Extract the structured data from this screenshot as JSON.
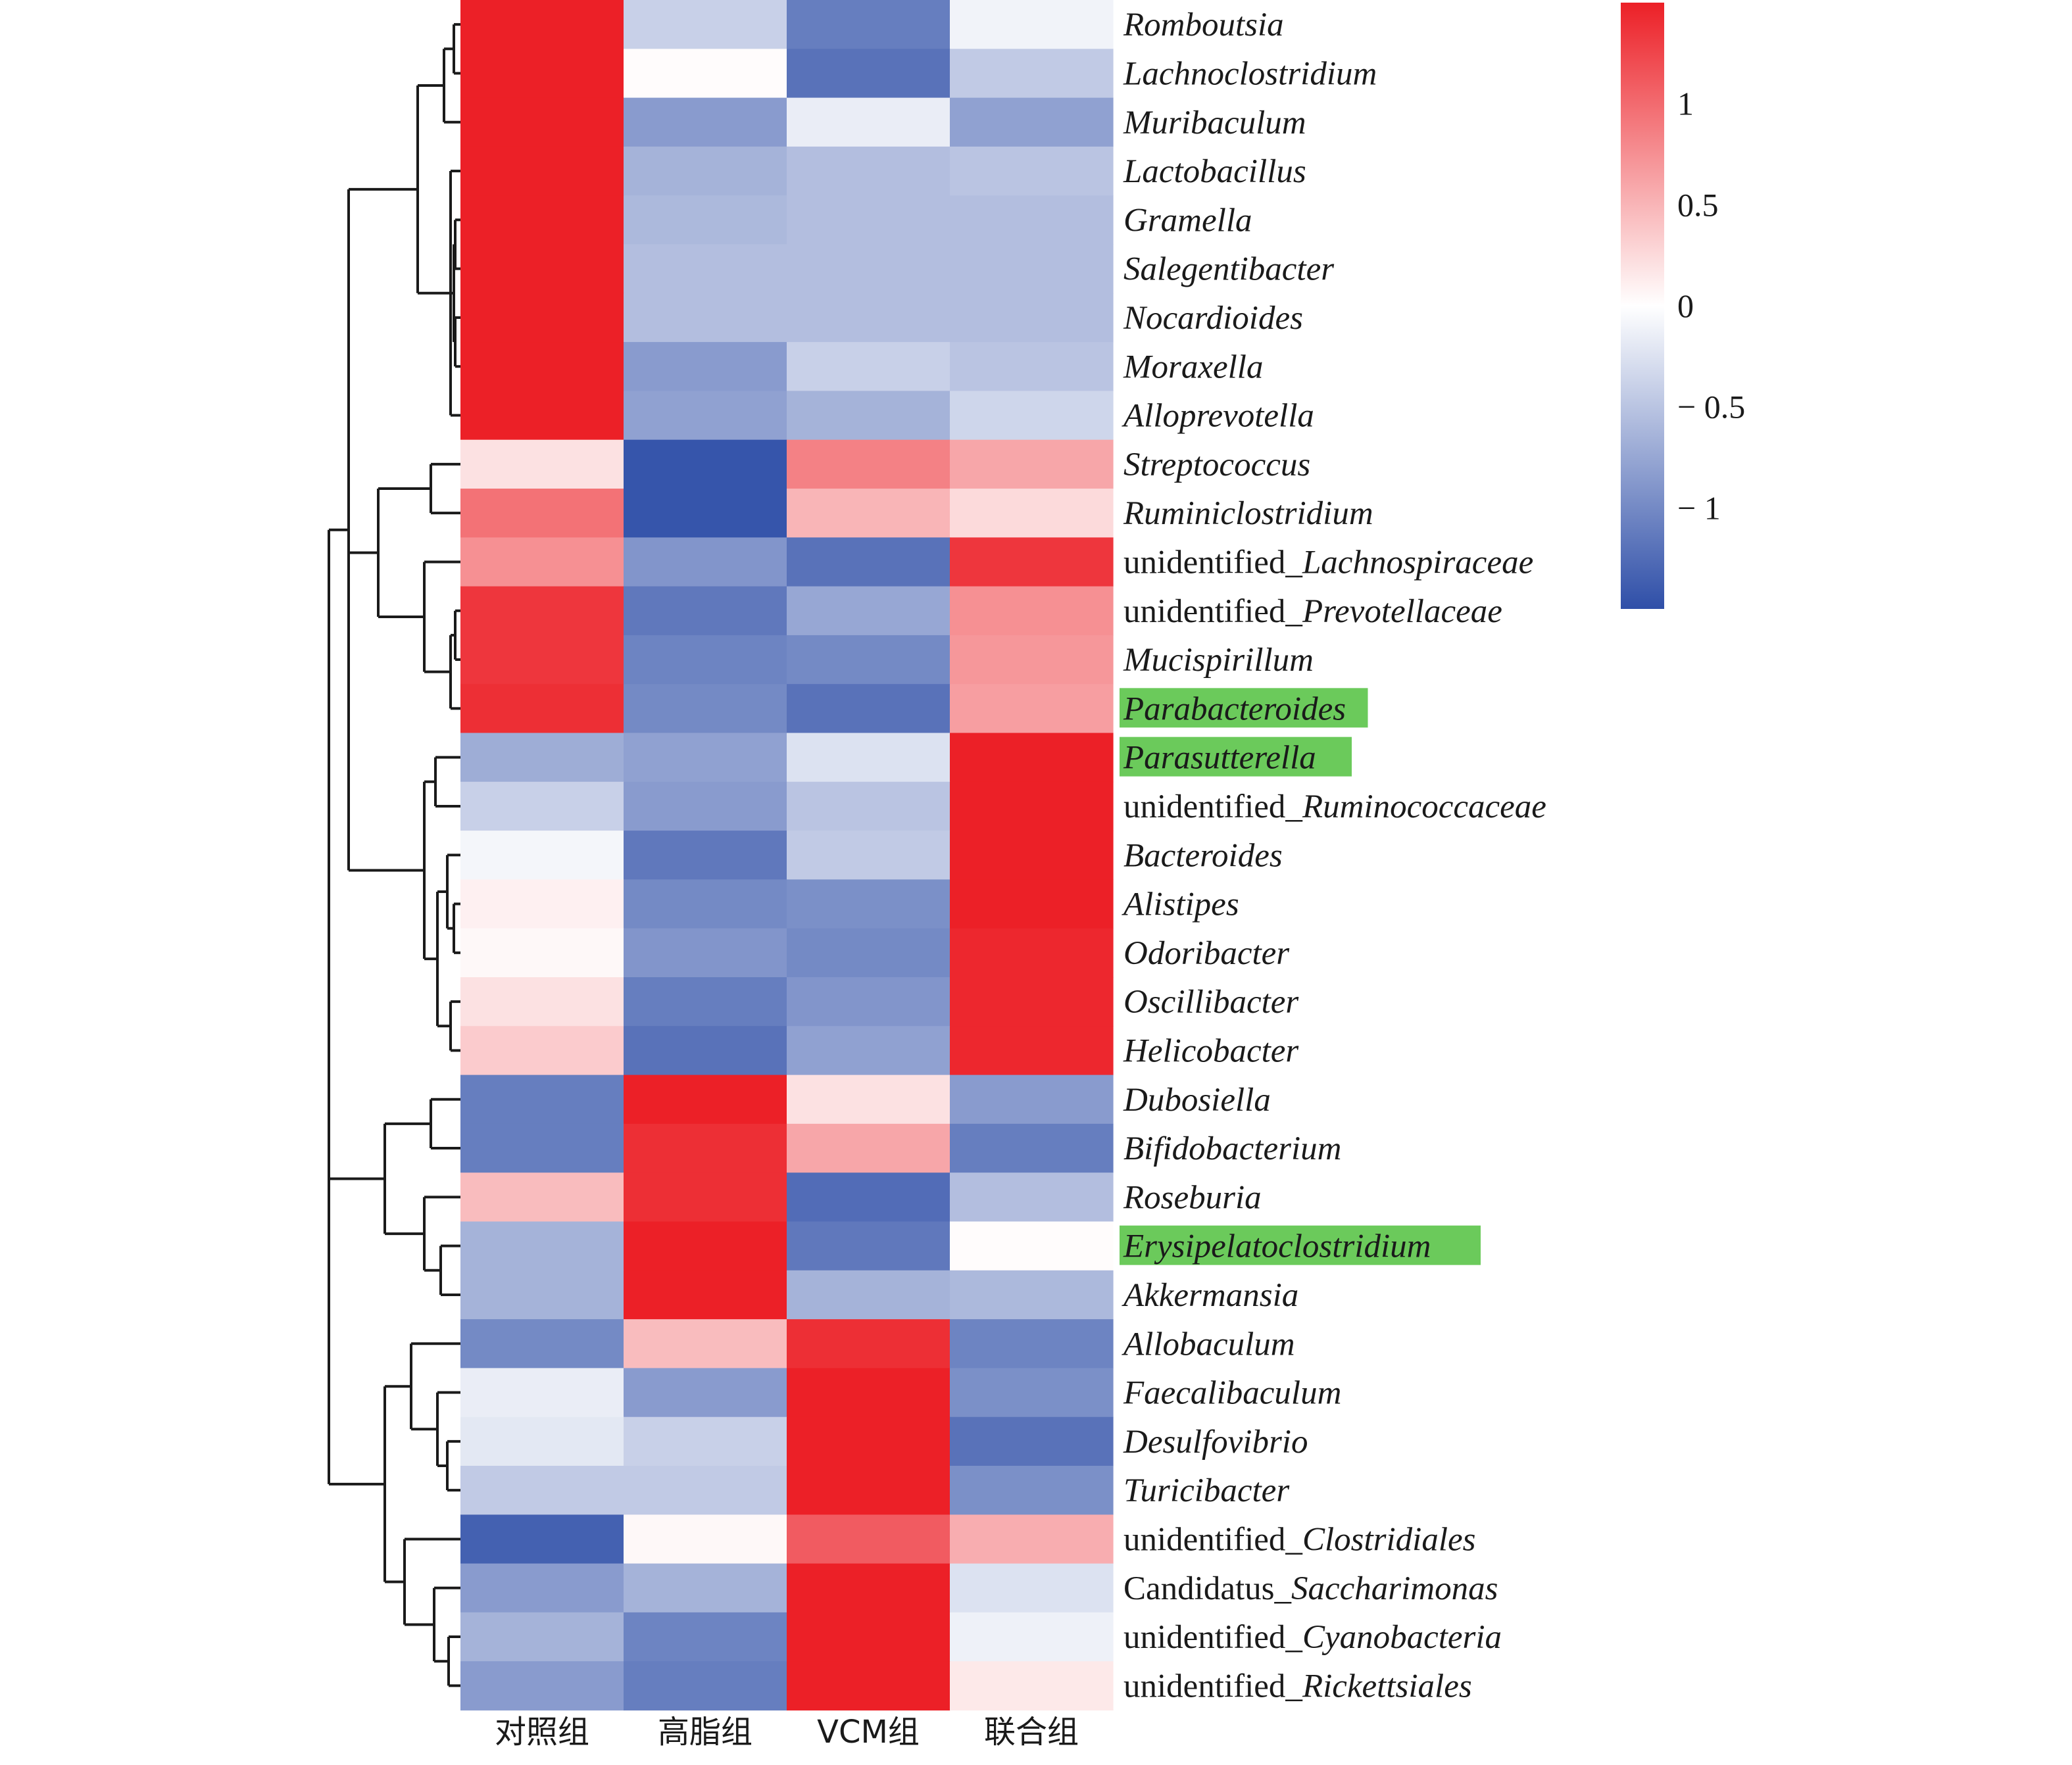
{
  "chart_data": {
    "type": "heatmap",
    "columns": [
      "对照组",
      "高脂组",
      "VCM组",
      "联合组"
    ],
    "rows": [
      {
        "parts": [
          [
            "Romboutsia",
            true
          ]
        ],
        "highlight": false
      },
      {
        "parts": [
          [
            "Lachnoclostridium",
            true
          ]
        ],
        "highlight": false
      },
      {
        "parts": [
          [
            "Muribaculum",
            true
          ]
        ],
        "highlight": false
      },
      {
        "parts": [
          [
            "Lactobacillus",
            true
          ]
        ],
        "highlight": false
      },
      {
        "parts": [
          [
            "Gramella",
            true
          ]
        ],
        "highlight": false
      },
      {
        "parts": [
          [
            "Salegentibacter",
            true
          ]
        ],
        "highlight": false
      },
      {
        "parts": [
          [
            "Nocardioides",
            true
          ]
        ],
        "highlight": false
      },
      {
        "parts": [
          [
            "Moraxella",
            true
          ]
        ],
        "highlight": false
      },
      {
        "parts": [
          [
            "Alloprevotella",
            true
          ]
        ],
        "highlight": false
      },
      {
        "parts": [
          [
            "Streptococcus",
            true
          ]
        ],
        "highlight": false
      },
      {
        "parts": [
          [
            "Ruminiclostridium",
            true
          ]
        ],
        "highlight": false
      },
      {
        "parts": [
          [
            "unidentified_",
            false
          ],
          [
            "Lachnospiraceae",
            true
          ]
        ],
        "highlight": false
      },
      {
        "parts": [
          [
            "unidentified_",
            false
          ],
          [
            "Prevotellaceae",
            true
          ]
        ],
        "highlight": false
      },
      {
        "parts": [
          [
            "Mucispirillum",
            true
          ]
        ],
        "highlight": false
      },
      {
        "parts": [
          [
            "Parabacteroides",
            true
          ]
        ],
        "highlight": true
      },
      {
        "parts": [
          [
            "Parasutterella",
            true
          ]
        ],
        "highlight": true
      },
      {
        "parts": [
          [
            "unidentified_",
            false
          ],
          [
            "Ruminococcaceae",
            true
          ]
        ],
        "highlight": false
      },
      {
        "parts": [
          [
            "Bacteroides",
            true
          ]
        ],
        "highlight": false
      },
      {
        "parts": [
          [
            "Alistipes",
            true
          ]
        ],
        "highlight": false
      },
      {
        "parts": [
          [
            "Odoribacter",
            true
          ]
        ],
        "highlight": false
      },
      {
        "parts": [
          [
            "Oscillibacter",
            true
          ]
        ],
        "highlight": false
      },
      {
        "parts": [
          [
            "Helicobacter",
            true
          ]
        ],
        "highlight": false
      },
      {
        "parts": [
          [
            "Dubosiella",
            true
          ]
        ],
        "highlight": false
      },
      {
        "parts": [
          [
            "Bifidobacterium",
            true
          ]
        ],
        "highlight": false
      },
      {
        "parts": [
          [
            "Roseburia",
            true
          ]
        ],
        "highlight": false
      },
      {
        "parts": [
          [
            "Erysipelatoclostridium",
            true
          ]
        ],
        "highlight": true
      },
      {
        "parts": [
          [
            "Akkermansia",
            true
          ]
        ],
        "highlight": false
      },
      {
        "parts": [
          [
            "Allobaculum",
            true
          ]
        ],
        "highlight": false
      },
      {
        "parts": [
          [
            "Faecalibaculum",
            true
          ]
        ],
        "highlight": false
      },
      {
        "parts": [
          [
            "Desulfovibrio",
            true
          ]
        ],
        "highlight": false
      },
      {
        "parts": [
          [
            "Turicibacter",
            true
          ]
        ],
        "highlight": false
      },
      {
        "parts": [
          [
            "unidentified_",
            false
          ],
          [
            "Clostridiales",
            true
          ]
        ],
        "highlight": false
      },
      {
        "parts": [
          [
            "Candidatus_",
            false
          ],
          [
            "Saccharimonas",
            true
          ]
        ],
        "highlight": false
      },
      {
        "parts": [
          [
            "unidentified_",
            false
          ],
          [
            "Cyanobacteria",
            true
          ]
        ],
        "highlight": false
      },
      {
        "parts": [
          [
            "unidentified_",
            false
          ],
          [
            "Rickettsiales",
            true
          ]
        ],
        "highlight": false
      }
    ],
    "values": [
      [
        1.5,
        -0.4,
        -1.1,
        -0.1
      ],
      [
        1.5,
        0.02,
        -1.2,
        -0.45
      ],
      [
        1.5,
        -0.85,
        -0.15,
        -0.8
      ],
      [
        1.5,
        -0.65,
        -0.55,
        -0.5
      ],
      [
        1.5,
        -0.6,
        -0.55,
        -0.55
      ],
      [
        1.5,
        -0.55,
        -0.55,
        -0.55
      ],
      [
        1.5,
        -0.55,
        -0.55,
        -0.55
      ],
      [
        1.5,
        -0.85,
        -0.4,
        -0.5
      ],
      [
        1.5,
        -0.8,
        -0.65,
        -0.35
      ],
      [
        0.2,
        -1.45,
        0.85,
        0.6
      ],
      [
        0.95,
        -1.45,
        0.5,
        0.25
      ],
      [
        0.75,
        -0.9,
        -1.2,
        1.35
      ],
      [
        1.35,
        -1.15,
        -0.75,
        0.75
      ],
      [
        1.35,
        -1.05,
        -1.0,
        0.7
      ],
      [
        1.4,
        -1.0,
        -1.2,
        0.65
      ],
      [
        -0.7,
        -0.8,
        -0.25,
        1.5
      ],
      [
        -0.4,
        -0.85,
        -0.5,
        1.5
      ],
      [
        -0.08,
        -1.15,
        -0.45,
        1.5
      ],
      [
        0.1,
        -1.0,
        -0.95,
        1.5
      ],
      [
        0.05,
        -0.9,
        -1.0,
        1.45
      ],
      [
        0.2,
        -1.1,
        -0.9,
        1.45
      ],
      [
        0.35,
        -1.2,
        -0.8,
        1.45
      ],
      [
        -1.1,
        1.5,
        0.2,
        -0.85
      ],
      [
        -1.1,
        1.4,
        0.6,
        -1.1
      ],
      [
        0.45,
        1.4,
        -1.25,
        -0.55
      ],
      [
        -0.65,
        1.5,
        -1.15,
        0.02
      ],
      [
        -0.65,
        1.5,
        -0.65,
        -0.6
      ],
      [
        -1.0,
        0.45,
        1.4,
        -1.05
      ],
      [
        -0.15,
        -0.85,
        1.5,
        -0.95
      ],
      [
        -0.2,
        -0.4,
        1.5,
        -1.2
      ],
      [
        -0.45,
        -0.45,
        1.5,
        -0.95
      ],
      [
        -1.35,
        0.05,
        1.1,
        0.55
      ],
      [
        -0.85,
        -0.65,
        1.5,
        -0.25
      ],
      [
        -0.65,
        -1.05,
        1.5,
        -0.12
      ],
      [
        -0.85,
        -1.1,
        1.5,
        0.15
      ]
    ],
    "color_scale": {
      "min": -1.5,
      "max": 1.5,
      "low_color": "#2f4fa8",
      "mid_color": "#ffffff",
      "high_color": "#ec2027",
      "ticks": [
        1,
        0.5,
        0,
        -0.5,
        -1
      ],
      "tick_labels": [
        "1",
        "0.5",
        "0",
        "− 0.5",
        "− 1"
      ]
    },
    "highlight_color": "#6bca5b",
    "legend": "right",
    "dendrogram": "rows"
  }
}
